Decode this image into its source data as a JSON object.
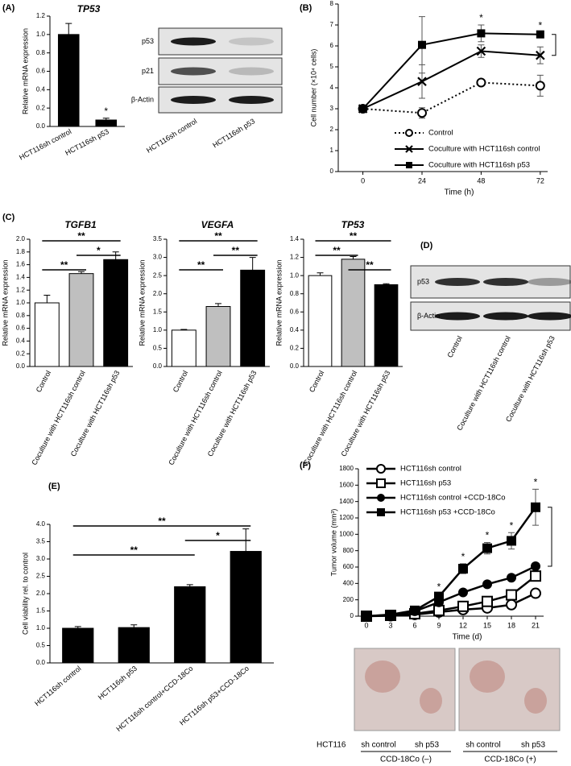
{
  "panel_labels": [
    "(A)",
    "(B)",
    "(C)",
    "(D)",
    "(E)",
    "(F)"
  ],
  "chart_data": [
    {
      "type": "bar",
      "title": "TP53",
      "ylabel": "Relative mRNA expression",
      "categories": [
        "HCT116sh control",
        "HCT116sh p53"
      ],
      "values": [
        1.0,
        0.07
      ],
      "errors": [
        0.12,
        0.02
      ],
      "colors": [
        "#000000",
        "#000000"
      ],
      "ylim": [
        0,
        1.2
      ],
      "yticks": [
        {
          "value": 0,
          "label": "0.0"
        },
        0.2,
        0.4,
        0.6,
        0.8,
        {
          "value": 1,
          "label": "1.0"
        },
        1.2
      ],
      "annotations": [
        {
          "text": "*",
          "at": 1
        }
      ]
    },
    {
      "type": "line",
      "ylabel": "Cell number (×10⁴ cells)",
      "xlabel": "Time (h)",
      "x": [
        0,
        24,
        48,
        72
      ],
      "xlim": [
        -10,
        75
      ],
      "xticks": [
        0,
        24,
        48,
        72
      ],
      "ylim": [
        0,
        8
      ],
      "yticks": [
        0,
        1,
        2,
        3,
        4,
        5,
        6,
        7,
        8
      ],
      "series": [
        {
          "name": "Control",
          "color": "#000000",
          "marker": "circle-open",
          "dash": true,
          "values": [
            3,
            2.8,
            4.25,
            4.1
          ],
          "errors": [
            0,
            0.25,
            0.1,
            0.5
          ]
        },
        {
          "name": "Coculture with HCT116sh control",
          "color": "#000000",
          "marker": "x",
          "dash": false,
          "values": [
            3,
            4.3,
            5.75,
            5.55
          ],
          "errors": [
            0,
            0.8,
            0.3,
            0.4
          ]
        },
        {
          "name": "Coculture with HCT116sh p53",
          "color": "#000000",
          "marker": "square",
          "dash": false,
          "values": [
            3,
            6.05,
            6.6,
            6.55
          ],
          "errors": [
            0,
            1.35,
            0.4,
            0.1
          ]
        }
      ],
      "annotations": [
        {
          "text": "*",
          "x": 48
        },
        {
          "text": "*",
          "x": 72
        }
      ]
    },
    {
      "type": "bar",
      "title": "TGFB1",
      "ylabel": "Relative mRNA expression",
      "categories": [
        "Control",
        "Coculture with HCT116sh control",
        "Coculture with HCT116sh p53"
      ],
      "values": [
        1.0,
        1.46,
        1.68
      ],
      "errors": [
        0.12,
        0.03,
        0.12
      ],
      "colors": [
        "#ffffff",
        "#bfbfbf",
        "#000000"
      ],
      "ylim": [
        0,
        2
      ],
      "yticks": [
        {
          "value": 0,
          "label": "0.0"
        },
        0.2,
        0.4,
        0.6,
        0.8,
        {
          "value": 1,
          "label": "1.0"
        },
        1.2,
        1.4,
        1.6,
        1.8,
        {
          "value": 2,
          "label": "2.0"
        }
      ],
      "annotations": [
        {
          "text": "**",
          "span": [
            0,
            2
          ]
        },
        {
          "text": "*",
          "span": [
            1,
            2
          ]
        },
        {
          "text": "**",
          "span": [
            0,
            1
          ]
        }
      ]
    },
    {
      "type": "bar",
      "title": "VEGFA",
      "ylabel": "Relative mRNA expression",
      "categories": [
        "Control",
        "Coculture with HCT116sh control",
        "Coculture with HCT116sh p53"
      ],
      "values": [
        1.0,
        1.65,
        2.65
      ],
      "errors": [
        0.02,
        0.08,
        0.35
      ],
      "colors": [
        "#ffffff",
        "#bfbfbf",
        "#000000"
      ],
      "ylim": [
        0,
        3.5
      ],
      "yticks": [
        {
          "value": 0,
          "label": "0.0"
        },
        0.5,
        {
          "value": 1,
          "label": "1.0"
        },
        1.5,
        {
          "value": 2,
          "label": "2.0"
        },
        2.5,
        {
          "value": 3,
          "label": "3.0"
        },
        3.5
      ],
      "annotations": [
        {
          "text": "**",
          "span": [
            0,
            2
          ]
        },
        {
          "text": "**",
          "span": [
            1,
            2
          ]
        },
        {
          "text": "**",
          "span": [
            0,
            1
          ]
        }
      ]
    },
    {
      "type": "bar",
      "title": "TP53",
      "ylabel": "Relative mRNA expression",
      "categories": [
        "Control",
        "Coculture with HCT116sh control",
        "Coculture with HCT116sh p53"
      ],
      "values": [
        1.0,
        1.18,
        0.9
      ],
      "errors": [
        0.03,
        0.03,
        0.01
      ],
      "colors": [
        "#ffffff",
        "#bfbfbf",
        "#000000"
      ],
      "ylim": [
        0,
        1.4
      ],
      "yticks": [
        {
          "value": 0,
          "label": "0.0"
        },
        0.2,
        0.4,
        0.6,
        0.8,
        {
          "value": 1,
          "label": "1.0"
        },
        1.2,
        1.4
      ],
      "annotations": [
        {
          "text": "**",
          "span": [
            0,
            2
          ]
        },
        {
          "text": "**",
          "span": [
            0,
            1
          ]
        },
        {
          "text": "**",
          "span": [
            1,
            2
          ]
        }
      ]
    },
    {
      "type": "bar",
      "ylabel": "Cell viability rel. to control",
      "categories": [
        "HCT116sh control",
        "HCT116sh p53",
        "HCT116sh control+CCD-18Co",
        "HCT116sh p53+CCD-18Co"
      ],
      "values": [
        1.0,
        1.02,
        2.2,
        3.22
      ],
      "errors": [
        0.05,
        0.08,
        0.06,
        0.65
      ],
      "colors": [
        "#000000",
        "#000000",
        "#000000",
        "#000000"
      ],
      "ylim": [
        0,
        4
      ],
      "yticks": [
        {
          "value": 0,
          "label": "0.0"
        },
        0.5,
        {
          "value": 1,
          "label": "1.0"
        },
        1.5,
        {
          "value": 2,
          "label": "2.0"
        },
        2.5,
        {
          "value": 3,
          "label": "3.0"
        },
        3.5,
        {
          "value": 4,
          "label": "4.0"
        }
      ],
      "annotations": [
        {
          "text": "**",
          "span": [
            0,
            3
          ]
        },
        {
          "text": "*",
          "span": [
            2,
            3
          ]
        },
        {
          "text": "**",
          "span": [
            0,
            2
          ]
        }
      ]
    },
    {
      "type": "line",
      "ylabel": "Tumor volume (mm³)",
      "xlabel": "Time (d)",
      "x": [
        0,
        3,
        6,
        9,
        12,
        15,
        18,
        21
      ],
      "xlim": [
        -1,
        22
      ],
      "xticks": [
        0,
        3,
        6,
        9,
        12,
        15,
        18,
        21
      ],
      "ylim": [
        0,
        1800
      ],
      "yticks": [
        0,
        200,
        400,
        600,
        800,
        1000,
        1200,
        1400,
        1600,
        1800
      ],
      "series": [
        {
          "name": "HCT116sh control",
          "color": "#000000",
          "marker": "circle-open",
          "dash": false,
          "values": [
            0,
            5,
            20,
            50,
            80,
            100,
            140,
            280
          ]
        },
        {
          "name": "HCT116sh p53",
          "color": "#000000",
          "marker": "square-open",
          "dash": false,
          "values": [
            0,
            10,
            30,
            70,
            120,
            180,
            260,
            490
          ]
        },
        {
          "name": "HCT116sh control +CCD-18Co",
          "color": "#000000",
          "marker": "circle",
          "dash": false,
          "values": [
            0,
            15,
            60,
            170,
            290,
            390,
            470,
            610
          ]
        },
        {
          "name": "HCT116sh p53 +CCD-18Co",
          "color": "#000000",
          "marker": "square",
          "dash": false,
          "values": [
            0,
            20,
            70,
            240,
            580,
            830,
            920,
            1330
          ],
          "errors": [
            0,
            0,
            0,
            30,
            60,
            70,
            100,
            220
          ]
        }
      ],
      "annotations": [
        {
          "text": "*",
          "x": 9
        },
        {
          "text": "*",
          "x": 12
        },
        {
          "text": "*",
          "x": 15
        },
        {
          "text": "*",
          "x": 18
        },
        {
          "text": "*",
          "x": 21
        }
      ]
    }
  ],
  "blots": [
    {
      "rows": [
        "p53",
        "p21",
        "β-Actin"
      ],
      "lanes": [
        "HCT116sh control",
        "HCT116sh p53"
      ]
    },
    {
      "rows": [
        "p53",
        "β-Actin"
      ],
      "lanes": [
        "Control",
        "Coculture with HCT116sh control",
        "Coculture with HCT116sh p53"
      ]
    }
  ],
  "photos": {
    "row_label": "HCT116",
    "lanes": [
      "sh  control",
      "sh p53",
      "sh control",
      "sh p53"
    ],
    "groups": [
      "CCD-18Co (–)",
      "CCD-18Co (+)"
    ]
  }
}
